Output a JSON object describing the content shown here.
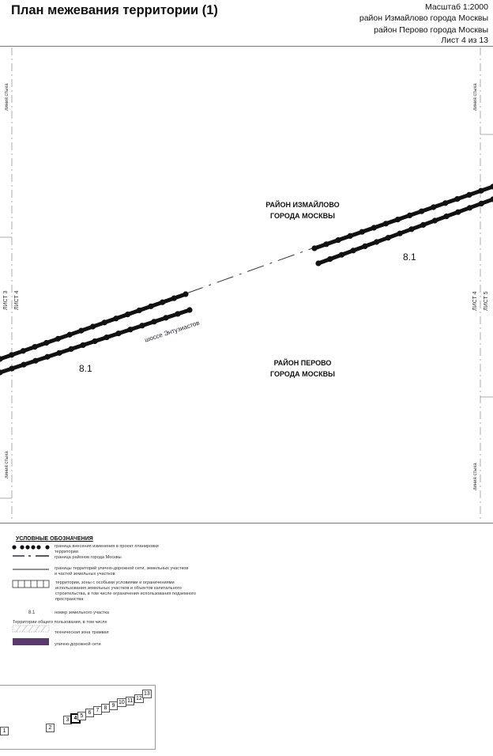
{
  "header": {
    "title": "План межевания территории (1)",
    "scale": "Масштаб  1:2000",
    "district1": "район Измайлово города Москвы",
    "district2": "район Перово города Москвы",
    "sheet": "Лист 4 из 13"
  },
  "map": {
    "left_joint_top": "линия стыка",
    "left_joint_bottom": "линия стыка",
    "right_joint_top": "линия стыка",
    "right_joint_bottom": "линия стыка",
    "left_sheet_a": "ЛИСТ 3",
    "left_sheet_b": "ЛИСТ 4",
    "right_sheet_a": "ЛИСТ 4",
    "right_sheet_b": "ЛИСТ 5",
    "district_north": [
      "РАЙОН ИЗМАЙЛОВО",
      "ГОРОДА МОСКВЫ"
    ],
    "district_south": [
      "РАЙОН ПЕРОВО",
      "ГОРОДА МОСКВЫ"
    ],
    "road_label": "шоссе Энтузиастов",
    "parcel_label_right": "8.1",
    "parcel_label_left": "8.1"
  },
  "legend": {
    "title": "УСЛОВНЫЕ ОБОЗНАЧЕНИЯ",
    "items": [
      "граница внесения изменения в проект планировки территории",
      "граница районов города Москвы",
      "границы территорий улично-дорожной сети, земельных участков и частей земельных участков",
      "территории, зоны с особыми условиями и ограничениями использования земельных участков и объектов капитального строительства, в том числе ограничения использования подземного пространства",
      "номер земельного участка"
    ],
    "parcel_sample": "8.1",
    "public_heading": "Территории общего пользования, в том числе",
    "public_items": [
      "техническая зона трамвая",
      "улично-дорожной сети"
    ],
    "colors": {
      "road_network": "#5a3a6e",
      "tram_zone_hatch": "#bbbbbb"
    }
  },
  "index_map": {
    "sheets": [
      "1",
      "2",
      "3",
      "4",
      "5",
      "6",
      "7",
      "8",
      "9",
      "10",
      "11",
      "12",
      "13"
    ],
    "current": "4"
  }
}
